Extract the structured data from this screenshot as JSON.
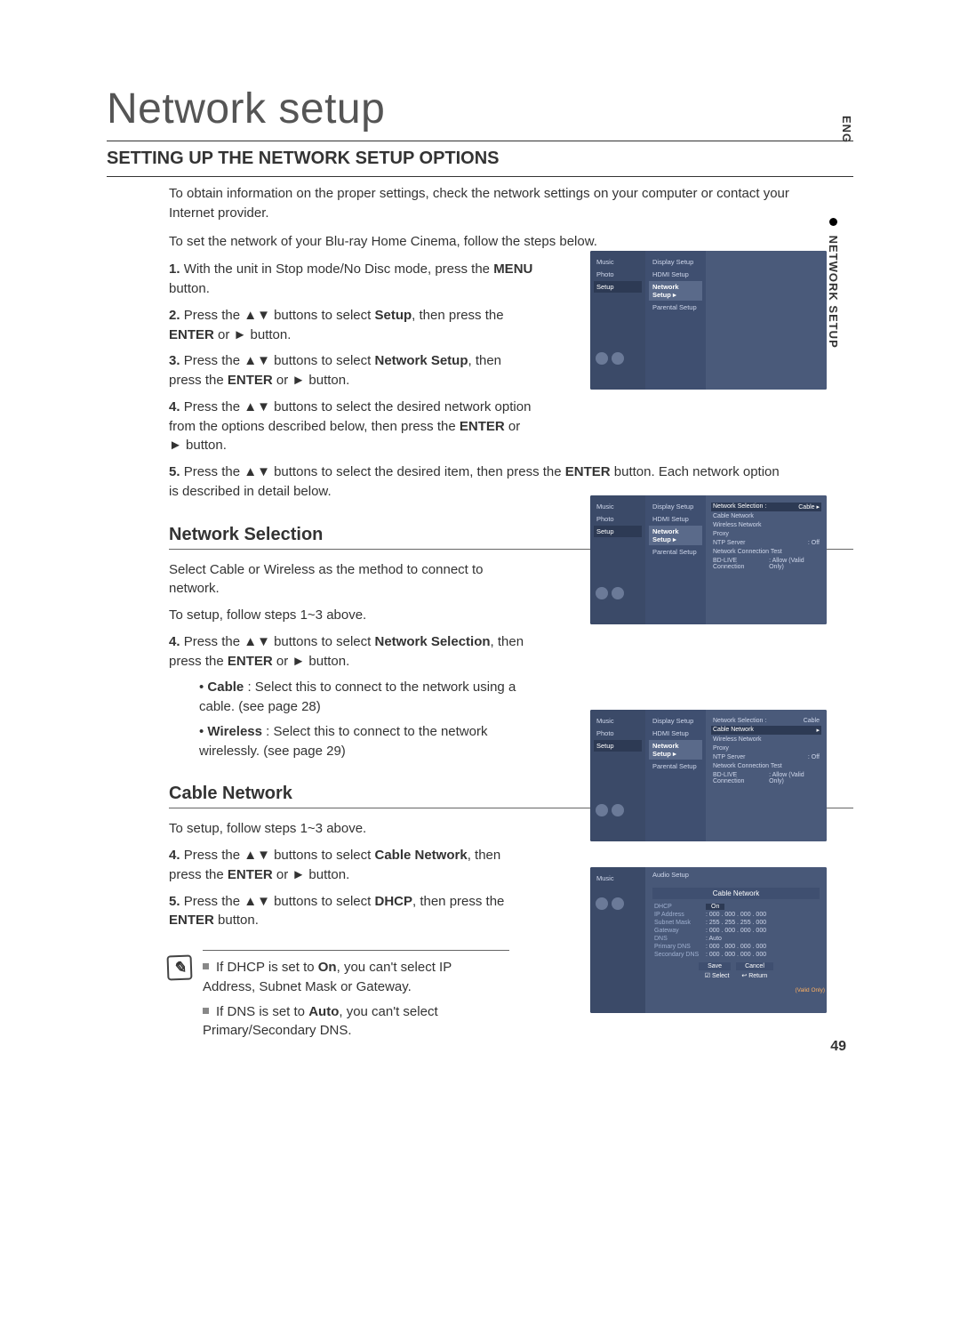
{
  "side": {
    "lang": "ENG",
    "section": "NETWORK SETUP"
  },
  "title": "Network setup",
  "section_heading": "SETTING UP THE NETWORK SETUP OPTIONS",
  "intro1": "To obtain information on the proper settings, check the network settings on your computer or contact your Internet provider.",
  "intro2": "To set the network of your Blu-ray Home Cinema, follow the steps below.",
  "steps_main": [
    {
      "n": "1.",
      "html": "With the unit in Stop mode/No Disc mode, press the <b>MENU</b> button."
    },
    {
      "n": "2.",
      "html": "Press the ▲▼ buttons to select <b>Setup</b>, then press the <b>ENTER</b> or ► button."
    },
    {
      "n": "3.",
      "html": "Press the ▲▼ buttons to select <b>Network Setup</b>, then press the <b>ENTER</b> or ► button."
    },
    {
      "n": "4.",
      "html": "Press the ▲▼ buttons to select the desired network option from the options described below, then press the <b>ENTER</b> or ► button."
    }
  ],
  "step5": {
    "n": "5.",
    "html": "Press the ▲▼ buttons to select the desired item, then press the <b>ENTER</b> button. Each network option is described in detail below."
  },
  "netsel": {
    "heading": "Network Selection",
    "p1": "Select Cable or Wireless as the method to connect to network.",
    "p2": "To setup, follow steps 1~3 above.",
    "s4": {
      "n": "4.",
      "html": "Press the ▲▼ buttons to select <b>Network Selection</b>, then press the <b>ENTER</b> or ► button."
    },
    "b1": {
      "html": "<b>Cable</b> : Select this to connect to the network using a cable. (see page 28)"
    },
    "b2": {
      "html": "<b>Wireless</b> : Select this to connect to the network wirelessly. (see page 29)"
    }
  },
  "cablenet": {
    "heading": "Cable Network",
    "p1": "To setup, follow steps 1~3 above.",
    "s4": {
      "n": "4.",
      "html": "Press the ▲▼ buttons to select <b>Cable Network</b>, then press the <b>ENTER</b> or ► button."
    },
    "s5": {
      "n": "5.",
      "html": "Press the ▲▼ buttons to select <b>DHCP</b>, then press the <b>ENTER</b> button."
    }
  },
  "notes": {
    "n1": {
      "html": "If DHCP is set to <b>On</b>, you can't select IP Address, Subnet Mask or Gateway."
    },
    "n2": {
      "html": "If DNS is set to <b>Auto</b>, you can't select Primary/Secondary DNS."
    }
  },
  "mock_sidebar": {
    "music": "Music",
    "photo": "Photo",
    "setup": "Setup"
  },
  "mock_menus": {
    "display": "Display Setup",
    "hdmi": "HDMI Setup",
    "network": "Network Setup",
    "parental": "Parental Setup",
    "audio": "Audio Setup"
  },
  "mock2_rows": [
    {
      "l": "Network Selection :",
      "r": "Cable",
      "hi": true
    },
    {
      "l": "Cable Network",
      "r": ""
    },
    {
      "l": "Wireless Network",
      "r": ""
    },
    {
      "l": "Proxy",
      "r": ""
    },
    {
      "l": "NTP Server",
      "r": ": Off"
    },
    {
      "l": "Network Connection Test",
      "r": ""
    },
    {
      "l": "BD-LIVE Connection",
      "r": ": Allow (Valid Only)"
    }
  ],
  "mock3_rows": [
    {
      "l": "Network Selection :",
      "r": "Cable"
    },
    {
      "l": "Cable Network",
      "r": "",
      "hi": true
    },
    {
      "l": "Wireless Network",
      "r": ""
    },
    {
      "l": "Proxy",
      "r": ""
    },
    {
      "l": "NTP Server",
      "r": ": Off"
    },
    {
      "l": "Network Connection Test",
      "r": ""
    },
    {
      "l": "BD-LIVE Connection",
      "r": ": Allow (Valid Only)"
    }
  ],
  "mock4": {
    "title": "Cable Network",
    "fields": [
      {
        "l": "DHCP",
        "v": "On",
        "hi": true
      },
      {
        "l": "IP Address",
        "v": "000 . 000 . 000 . 000"
      },
      {
        "l": "Subnet Mask",
        "v": "255 . 255 . 255 . 000"
      },
      {
        "l": "Gateway",
        "v": "000 . 000 . 000 . 000"
      },
      {
        "l": "DNS",
        "v": "Auto"
      },
      {
        "l": "Primary DNS",
        "v": "000 . 000 . 000 . 000"
      },
      {
        "l": "Secondary DNS",
        "v": "000 . 000 . 000 . 000"
      }
    ],
    "btns": [
      "Save",
      "Cancel"
    ],
    "footer": [
      "☑ Select",
      "↩ Return"
    ],
    "tag": "(Valid Only)"
  },
  "page_num": "49"
}
